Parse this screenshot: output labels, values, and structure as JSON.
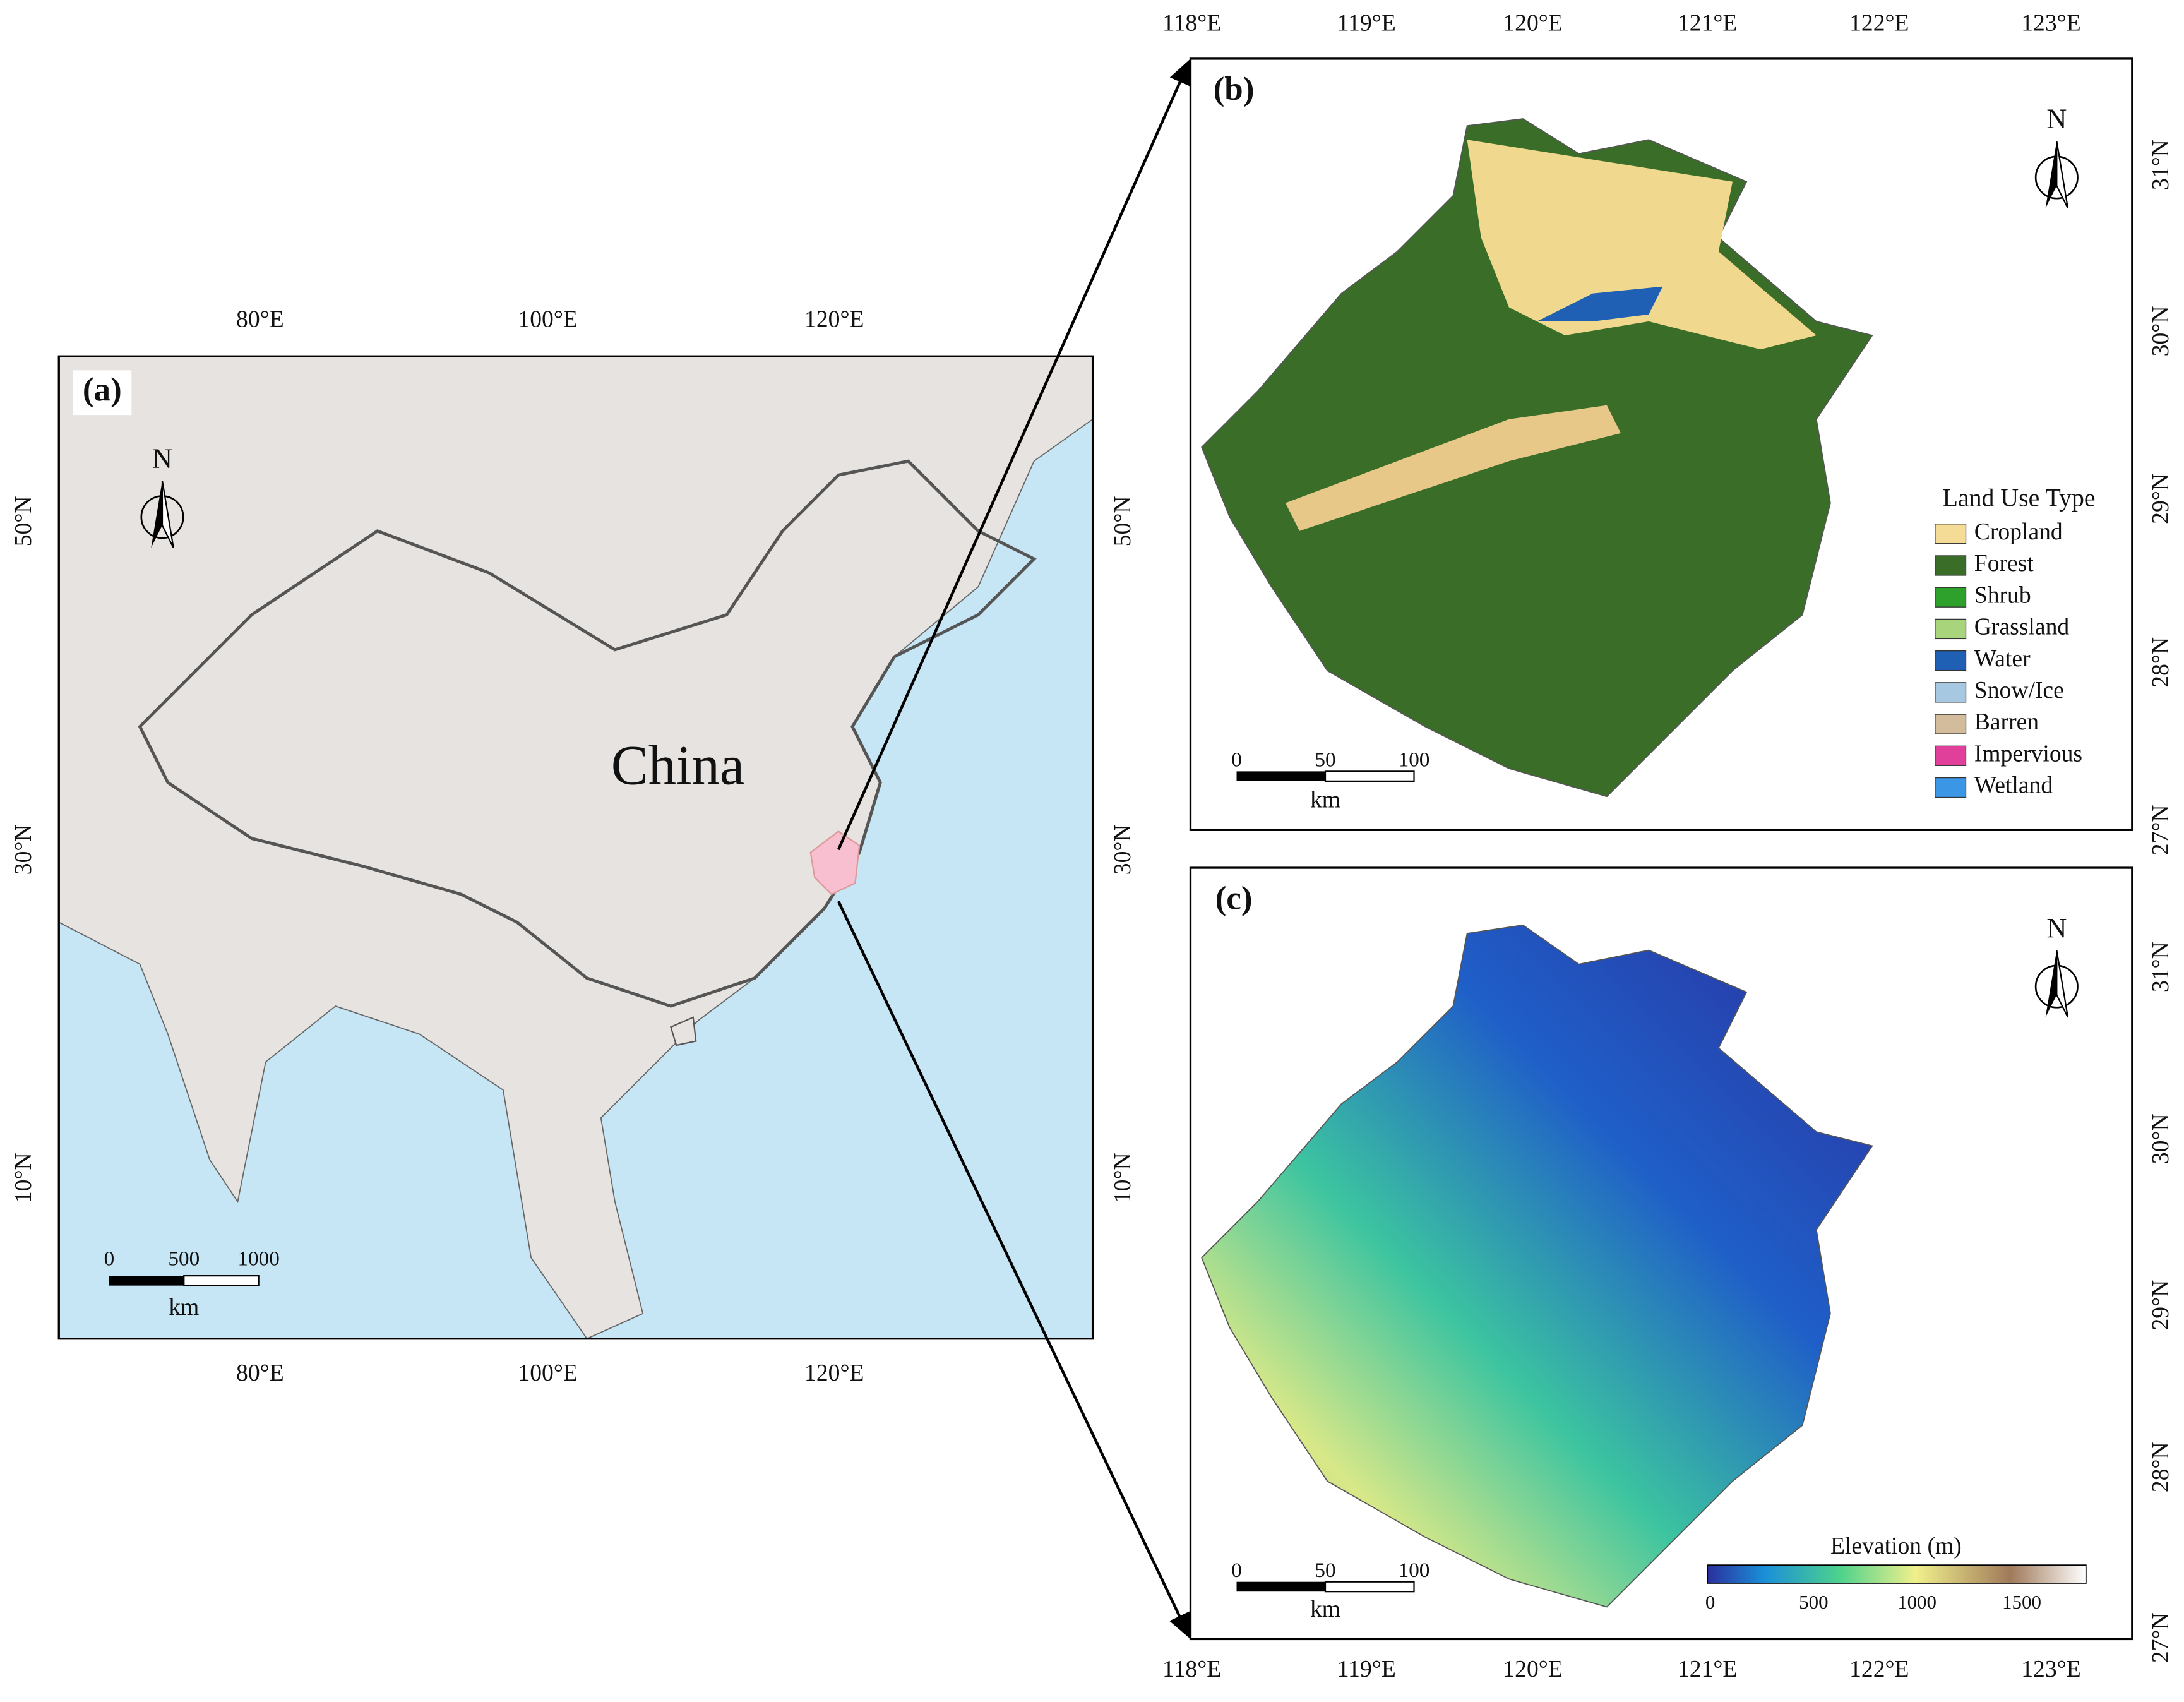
{
  "panel_a": {
    "label": "(a)",
    "country_label": "China",
    "north": "N",
    "top_ticks": [
      "80°E",
      "100°E",
      "120°E"
    ],
    "bottom_ticks": [
      "80°E",
      "100°E",
      "120°E"
    ],
    "left_ticks": [
      "50°N",
      "30°N",
      "10°N"
    ],
    "right_ticks": [
      "50°N",
      "30°N",
      "10°N"
    ],
    "scale_labels": [
      "0",
      "500",
      "1000"
    ],
    "scale_unit": "km"
  },
  "panel_b": {
    "label": "(b)",
    "north": "N",
    "top_ticks": [
      "118°E",
      "119°E",
      "120°E",
      "121°E",
      "122°E",
      "123°E"
    ],
    "right_ticks": [
      "31°N",
      "30°N",
      "29°N",
      "28°N",
      "27°N"
    ],
    "legend": {
      "title": "Land Use Type",
      "items": [
        {
          "name": "Cropland",
          "color": "#f5dc96"
        },
        {
          "name": "Forest",
          "color": "#3a6e28"
        },
        {
          "name": "Shrub",
          "color": "#2ea02c"
        },
        {
          "name": "Grassland",
          "color": "#a8d47c"
        },
        {
          "name": "Water",
          "color": "#1f5fb4"
        },
        {
          "name": "Snow/Ice",
          "color": "#a6c8e0"
        },
        {
          "name": "Barren",
          "color": "#d2bc9c"
        },
        {
          "name": "Impervious",
          "color": "#e0409a"
        },
        {
          "name": "Wetland",
          "color": "#3c96e6"
        }
      ]
    },
    "scale_labels": [
      "0",
      "50",
      "100"
    ],
    "scale_unit": "km"
  },
  "panel_c": {
    "label": "(c)",
    "north": "N",
    "bottom_ticks": [
      "118°E",
      "119°E",
      "120°E",
      "121°E",
      "122°E",
      "123°E"
    ],
    "right_ticks": [
      "31°N",
      "30°N",
      "29°N",
      "28°N",
      "27°N"
    ],
    "colorbar": {
      "title": "Elevation (m)",
      "ticks": [
        "0",
        "500",
        "1000",
        "1500"
      ]
    },
    "scale_labels": [
      "0",
      "50",
      "100"
    ],
    "scale_unit": "km"
  }
}
